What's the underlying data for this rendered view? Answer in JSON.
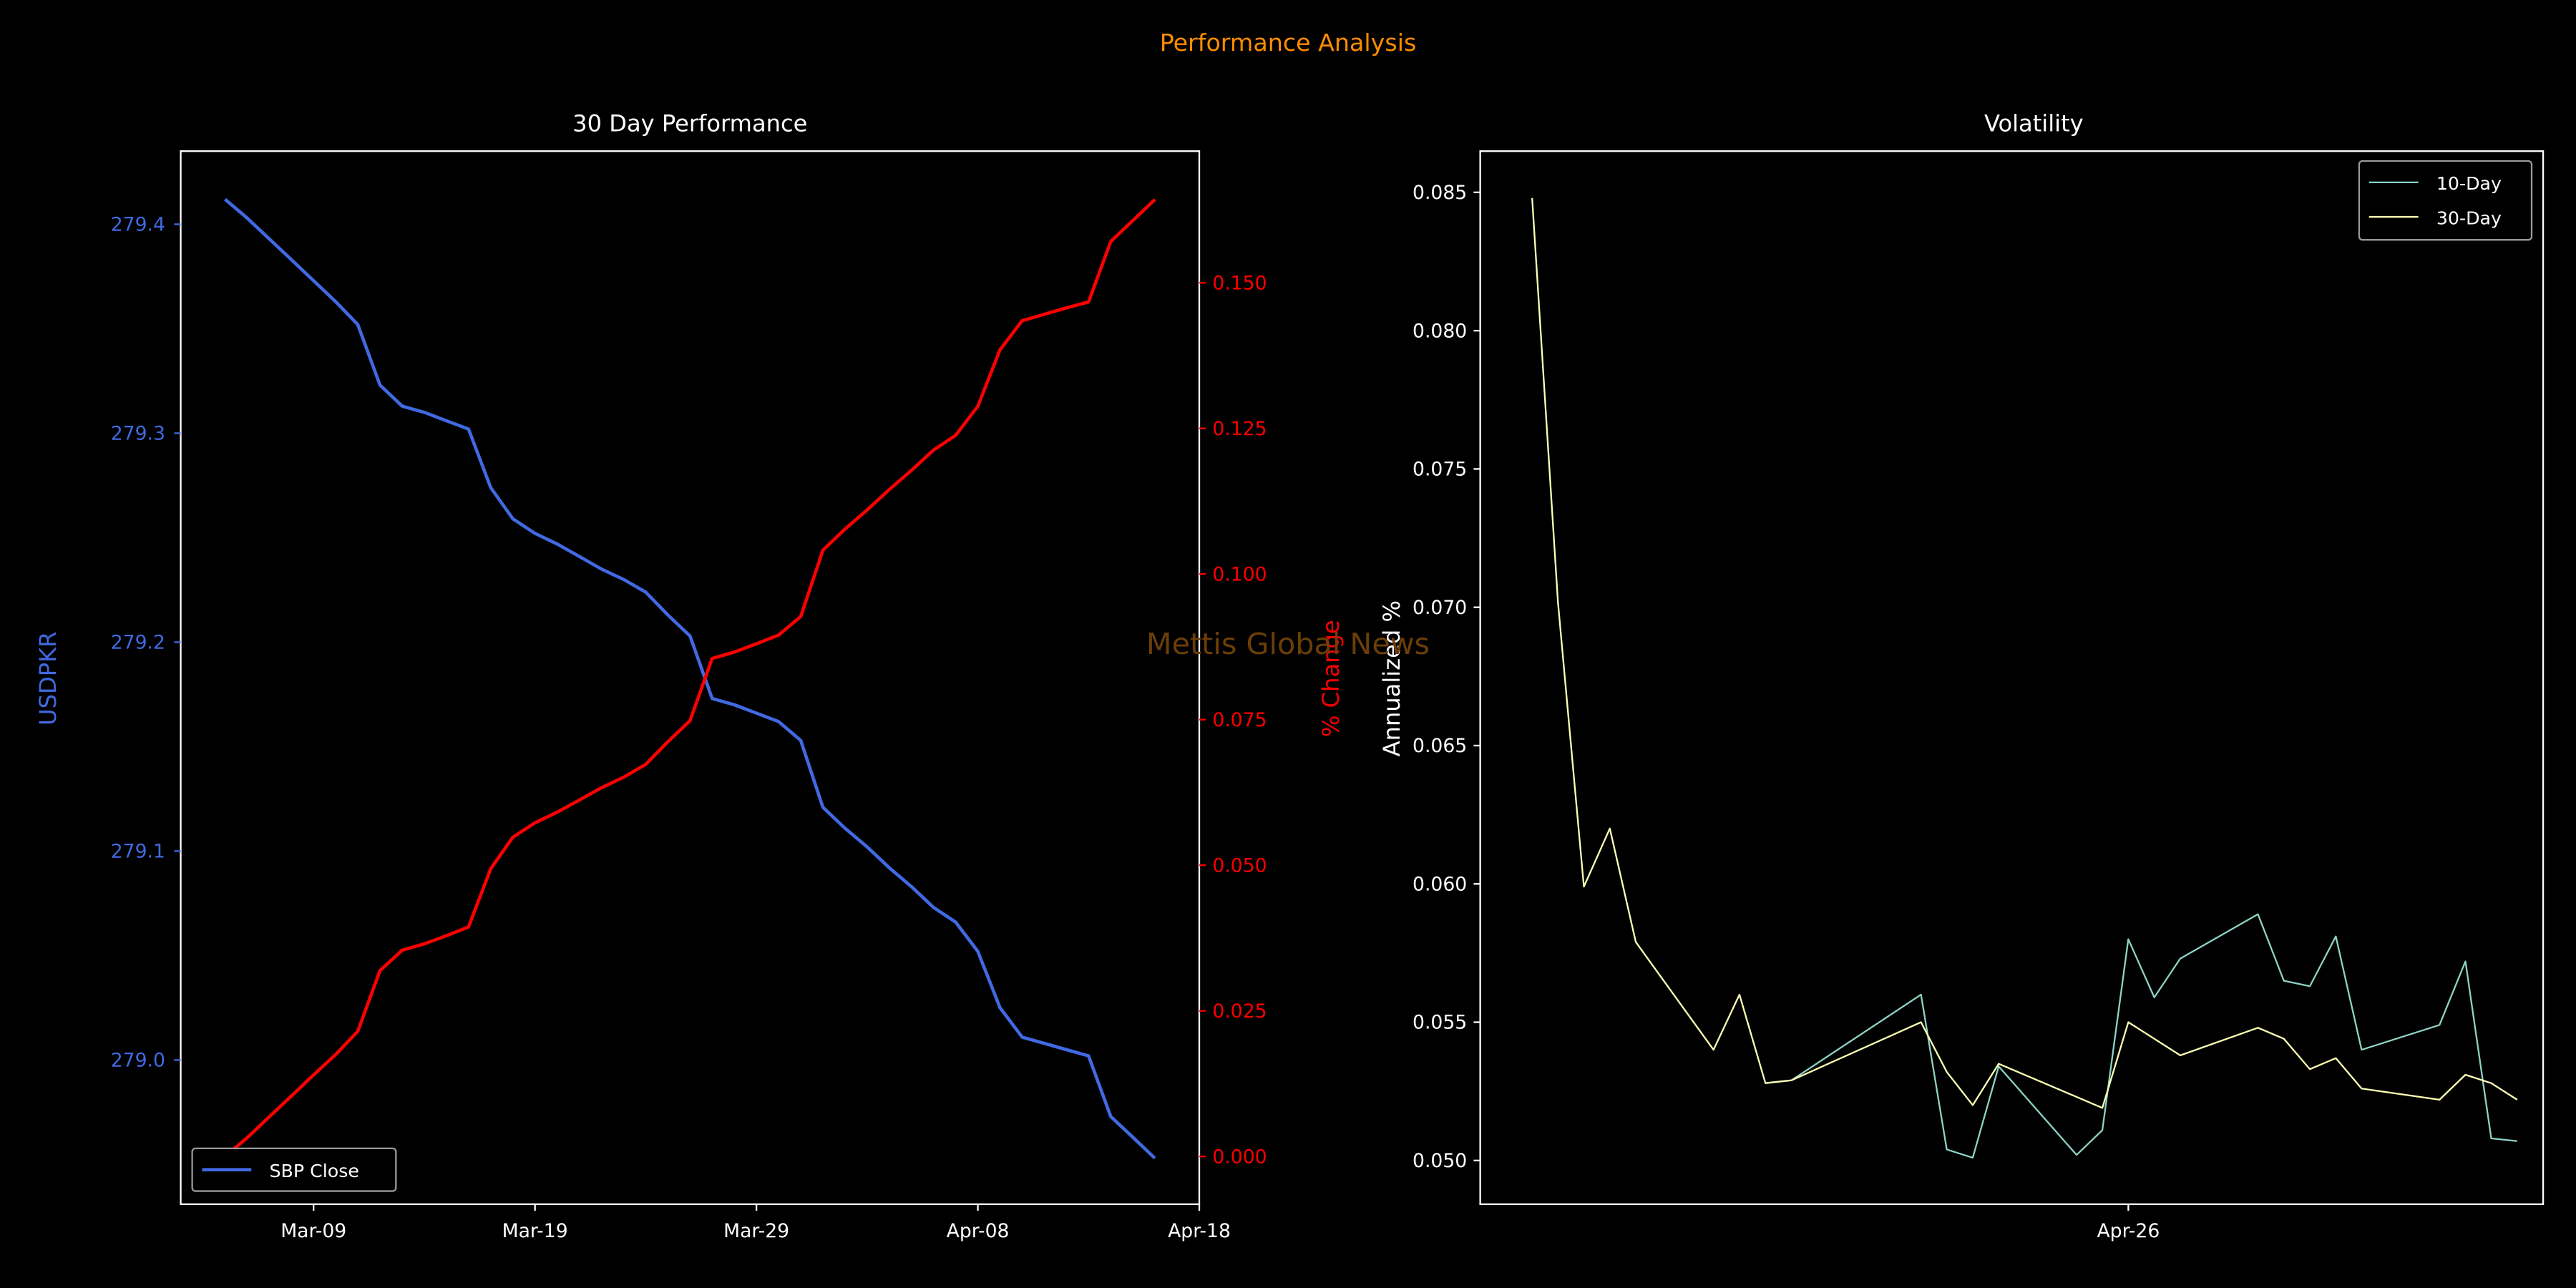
{
  "figure": {
    "suptitle": "Performance Analysis",
    "watermark": "Mettis Global News",
    "colors": {
      "background": "#000000",
      "suptitle": "#ff8c00",
      "watermark": "#6b3e08",
      "axes": "#ffffff"
    }
  },
  "chart_data": [
    {
      "type": "line",
      "title": "30 Day Performance",
      "xlabel": "",
      "ylabel": "USDPKR",
      "y2label": "% Change",
      "xlim": [
        "Mar-03",
        "Apr-18"
      ],
      "ylim": [
        278.931,
        279.435
      ],
      "y2lim": [
        -0.0082,
        0.1726
      ],
      "xticks": [
        "Mar-09",
        "Mar-19",
        "Mar-29",
        "Apr-08",
        "Apr-18"
      ],
      "yticks": [
        "279.0",
        "279.1",
        "279.2",
        "279.3",
        "279.4"
      ],
      "y2ticks": [
        "0.000",
        "0.025",
        "0.050",
        "0.075",
        "0.100",
        "0.125",
        "0.150"
      ],
      "legend": {
        "placement": "lower-left",
        "entries": [
          "SBP Close"
        ]
      },
      "grid": false,
      "x": [
        "Mar-05",
        "Mar-06",
        "Mar-07",
        "Mar-08",
        "Mar-09",
        "Mar-10",
        "Mar-11",
        "Mar-12",
        "Mar-13",
        "Mar-14",
        "Mar-15",
        "Mar-16",
        "Mar-17",
        "Mar-18",
        "Mar-19",
        "Mar-20",
        "Mar-21",
        "Mar-22",
        "Mar-23",
        "Mar-24",
        "Mar-25",
        "Mar-26",
        "Mar-27",
        "Mar-28",
        "Mar-29",
        "Mar-30",
        "Mar-31",
        "Apr-01",
        "Apr-02",
        "Apr-03",
        "Apr-04",
        "Apr-05",
        "Apr-06",
        "Apr-07",
        "Apr-08",
        "Apr-09",
        "Apr-10",
        "Apr-11",
        "Apr-12",
        "Apr-13",
        "Apr-14",
        "Apr-15",
        "Apr-16"
      ],
      "series": [
        {
          "name": "SBP Close",
          "axis": "left",
          "color": "#4169e1",
          "values": [
            279.412,
            279.403,
            279.393,
            279.383,
            279.373,
            279.363,
            279.352,
            279.323,
            279.313,
            279.31,
            279.306,
            279.302,
            279.274,
            279.259,
            279.252,
            279.247,
            279.241,
            279.235,
            279.23,
            279.224,
            279.213,
            279.203,
            279.173,
            279.17,
            279.166,
            279.162,
            279.153,
            279.121,
            279.111,
            279.102,
            279.092,
            279.083,
            279.073,
            279.066,
            279.052,
            279.025,
            279.011,
            279.008,
            279.005,
            279.002,
            278.973,
            278.963,
            278.953
          ]
        },
        {
          "axis": "right",
          "color": "#ff0000",
          "values": [
            0,
            0.0032,
            0.0068,
            0.0104,
            0.014,
            0.0175,
            0.0215,
            0.0319,
            0.0354,
            0.0365,
            0.0379,
            0.0394,
            0.0494,
            0.0548,
            0.0573,
            0.0591,
            0.0612,
            0.0633,
            0.0651,
            0.0673,
            0.0712,
            0.0748,
            0.0855,
            0.0866,
            0.088,
            0.0895,
            0.0927,
            0.1041,
            0.1077,
            0.111,
            0.1145,
            0.1178,
            0.1213,
            0.1238,
            0.1288,
            0.1385,
            0.1435,
            0.1446,
            0.1457,
            0.1467,
            0.1571,
            0.1607,
            0.1643
          ]
        }
      ]
    },
    {
      "type": "line",
      "title": "Volatility",
      "xlabel": "",
      "ylabel": "Annualized %",
      "xlim": [
        "Apr-01",
        "May-12"
      ],
      "ylim": [
        0.04842,
        0.08649
      ],
      "xticks": [
        "Apr-26"
      ],
      "yticks": [
        "0.050",
        "0.055",
        "0.060",
        "0.065",
        "0.070",
        "0.075",
        "0.080",
        "0.085"
      ],
      "legend": {
        "placement": "upper-right",
        "entries": [
          "10-Day",
          "30-Day"
        ]
      },
      "grid": false,
      "series": [
        {
          "name": "10-Day",
          "color": "#8dd3c7",
          "x": [
            "Apr-12",
            "Apr-13",
            "Apr-18",
            "Apr-19",
            "Apr-20",
            "Apr-21",
            "Apr-24",
            "Apr-25",
            "Apr-26",
            "Apr-27",
            "Apr-28",
            "May-01",
            "May-02",
            "May-03",
            "May-04",
            "May-05",
            "May-08",
            "May-09",
            "May-10",
            "May-11"
          ],
          "values": [
            0.0528,
            0.0529,
            0.056,
            0.0504,
            0.0501,
            0.0534,
            0.0502,
            0.0511,
            0.058,
            0.0559,
            0.0573,
            0.0589,
            0.0565,
            0.0563,
            0.0581,
            0.054,
            0.0549,
            0.0572,
            0.0508,
            0.0507
          ]
        },
        {
          "name": "30-Day",
          "color": "#ffffb3",
          "x": [
            "Apr-03",
            "Apr-04",
            "Apr-05",
            "Apr-06",
            "Apr-07",
            "Apr-10",
            "Apr-11",
            "Apr-12",
            "Apr-13",
            "Apr-18",
            "Apr-19",
            "Apr-20",
            "Apr-21",
            "Apr-24",
            "Apr-25",
            "Apr-26",
            "Apr-27",
            "Apr-28",
            "May-01",
            "May-02",
            "May-03",
            "May-04",
            "May-05",
            "May-08",
            "May-09",
            "May-10",
            "May-11"
          ],
          "values": [
            0.0848,
            0.0702,
            0.0599,
            0.062,
            0.0579,
            0.054,
            0.056,
            0.0528,
            0.0529,
            0.055,
            0.0532,
            0.052,
            0.0535,
            0.0523,
            0.0519,
            0.055,
            0.0544,
            0.0538,
            0.0548,
            0.0544,
            0.0533,
            0.0537,
            0.0526,
            0.0522,
            0.0531,
            0.0528,
            0.0522
          ]
        }
      ]
    }
  ]
}
